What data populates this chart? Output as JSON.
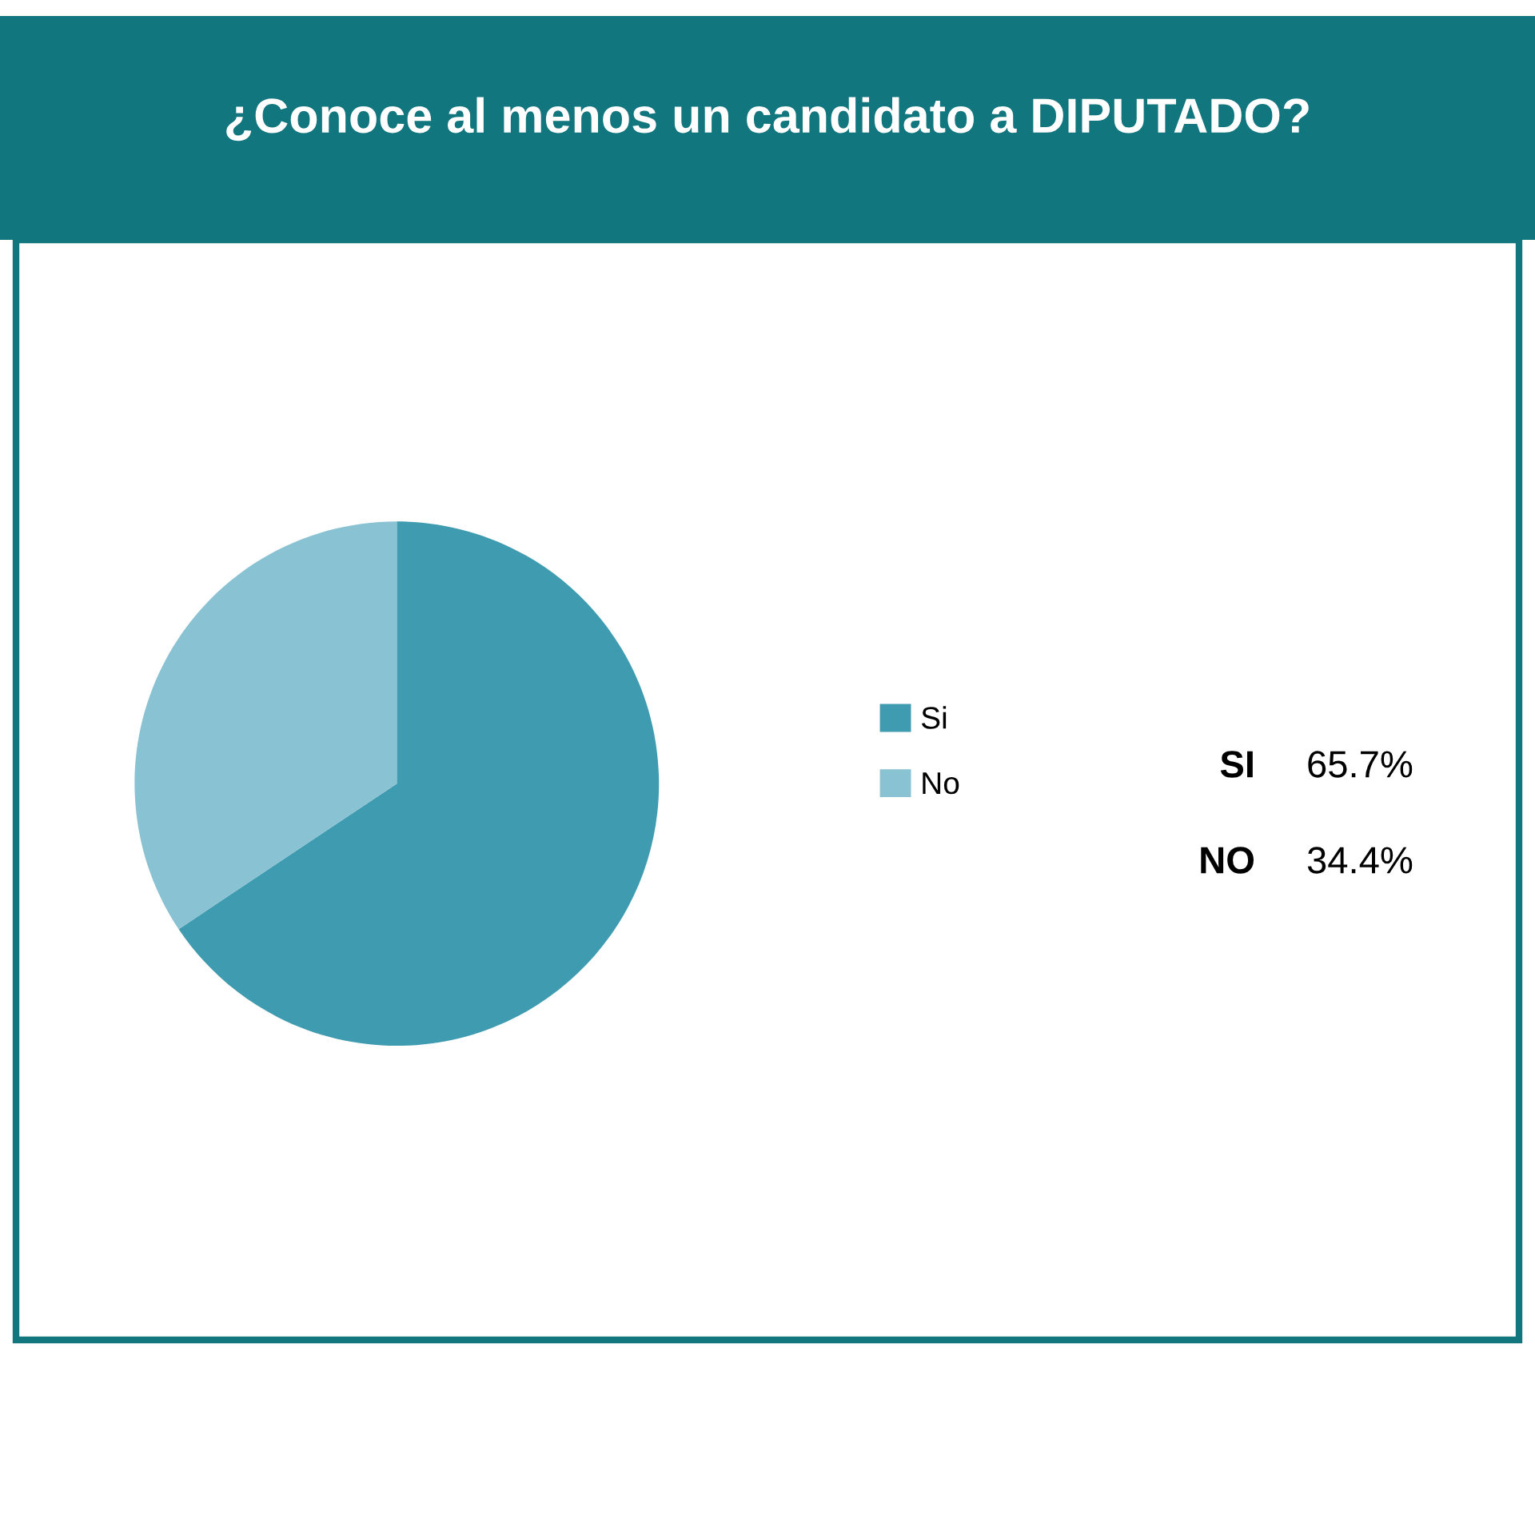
{
  "chart_data": {
    "type": "pie",
    "title": "¿Conoce al menos un candidato a DIPUTADO?",
    "categories": [
      "Si",
      "No"
    ],
    "values": [
      65.7,
      34.4
    ],
    "colors": [
      "#3f9bb0",
      "#88c2d3"
    ],
    "annotations": [
      "SI",
      "65.7%",
      "NO",
      "34.4%"
    ],
    "legend": "right"
  }
}
